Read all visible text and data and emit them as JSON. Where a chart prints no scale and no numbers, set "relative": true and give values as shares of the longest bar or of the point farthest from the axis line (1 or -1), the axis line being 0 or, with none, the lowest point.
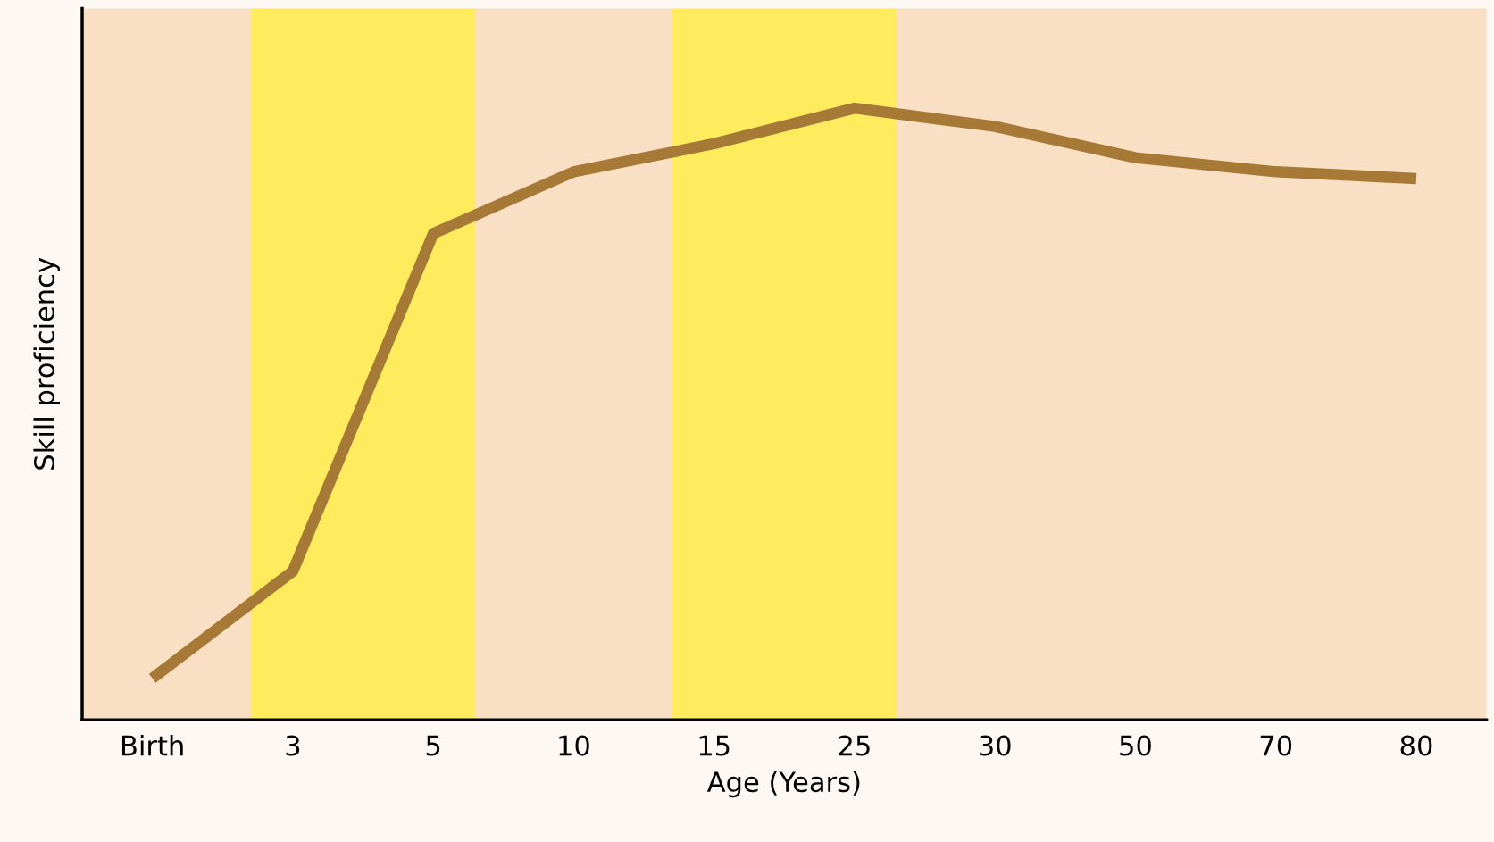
{
  "chart_data": {
    "type": "line",
    "relative": true,
    "tick_labels": "x",
    "grid": false,
    "legend": false,
    "marker": "none",
    "line_style": "solid",
    "xlabel": "Age (Years)",
    "ylabel": "Skill proficiency",
    "categories": [
      "Birth",
      "3",
      "5",
      "10",
      "15",
      "25",
      "30",
      "50",
      "70",
      "80"
    ],
    "series": [
      {
        "color": "#a67936",
        "values": [
          0.068,
          0.243,
          0.795,
          0.896,
          0.942,
          1.0,
          0.97,
          0.919,
          0.896,
          0.885
        ]
      }
    ],
    "bands": [
      {
        "axis": "x",
        "from": "3",
        "to": "5",
        "color": "#fff03c"
      },
      {
        "axis": "x",
        "from": "15",
        "to": "25",
        "color": "#fff03c"
      }
    ]
  }
}
